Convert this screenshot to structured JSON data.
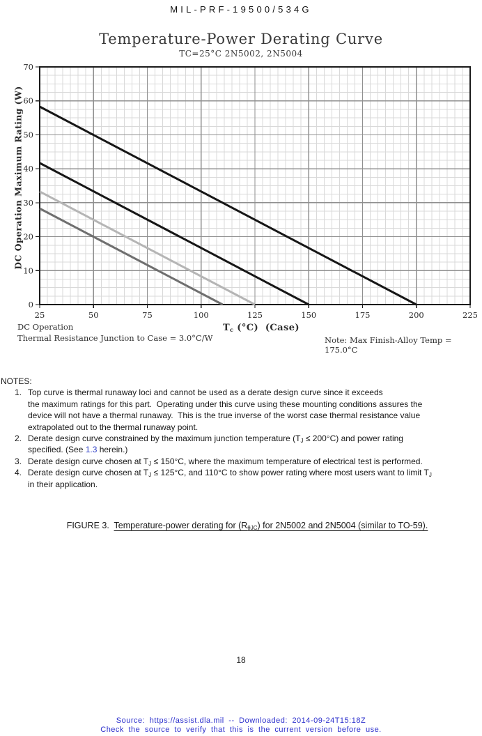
{
  "page": {
    "header": "MIL-PRF-19500/534G",
    "page_number": "18",
    "footer_line1": "Source: https://assist.dla.mil -- Downloaded: 2014-09-24T15:18Z",
    "footer_line2": "Check the source to verify that this is the current version before use.",
    "footer_color": "#2a2ecc"
  },
  "chart": {
    "xlabel_prefix": "T",
    "xlabel_sub": "c",
    "xlabel_suffix": " (°C)  (Case)",
    "annotation_dc_operation": "DC Operation",
    "annotation_thermal": "Thermal Resistance Junction to Case = 3.0°C/W",
    "annotation_note": "Note: Max Finish-Alloy Temp = 175.0°C"
  },
  "chart_data": {
    "type": "line",
    "title": "Temperature-Power Derating Curve",
    "subtitle": "TC=25°C 2N5002, 2N5004",
    "xlabel": "Tc (°C) (Case)",
    "ylabel": "DC Operation Maximum Rating (W)",
    "xlim": [
      25,
      225
    ],
    "ylim": [
      0,
      70
    ],
    "xticks": [
      25,
      50,
      75,
      100,
      125,
      150,
      175,
      200,
      225
    ],
    "yticks": [
      0,
      10,
      20,
      30,
      40,
      50,
      60,
      70
    ],
    "x_minor_per_major": 7,
    "y_minor_per_major": 4,
    "grid": {
      "major_color": "#8f8f8f",
      "minor_color": "#d9d9d9",
      "border_color": "#1a1a1a"
    },
    "legend": "none",
    "series": [
      {
        "name": "Thermal runaway loci (TJ = 200°C)",
        "color": "#161616",
        "width": 3,
        "points": [
          [
            25,
            58.3
          ],
          [
            200,
            0
          ]
        ]
      },
      {
        "name": "Derate design curve TJ ≤ 150°C",
        "color": "#161616",
        "width": 3,
        "points": [
          [
            25,
            41.7
          ],
          [
            150,
            0
          ]
        ]
      },
      {
        "name": "Derate design curve TJ ≤ 125°C",
        "color": "#b5b5b5",
        "width": 3,
        "points": [
          [
            25,
            33.3
          ],
          [
            125,
            0
          ]
        ]
      },
      {
        "name": "Derate design curve TJ ≤ 110°C",
        "color": "#6f6f6f",
        "width": 3,
        "points": [
          [
            25,
            28.3
          ],
          [
            110,
            0
          ]
        ]
      }
    ]
  },
  "notes": {
    "heading": "NOTES:",
    "item1": {
      "num": "1.",
      "line1": "Top curve is thermal runaway loci and cannot be used as a derate design curve since it exceeds",
      "line2": "the maximum ratings for this part.  Operating under this curve using these mounting conditions assures the",
      "line3": "device will not have a thermal runaway.  This is the true inverse of the worst case thermal resistance value",
      "line4": "extrapolated out to the thermal runaway point."
    },
    "item2": {
      "num": "2.",
      "l1a": "Derate design curve constrained by the maximum junction temperature (T",
      "l1sub": "J",
      "l1b": " ≤ 200°C) and power rating",
      "l2a": "specified. (See ",
      "l2link": "1.3",
      "l2b": " herein.)"
    },
    "item3": {
      "num": "3.",
      "a": "Derate design curve chosen at T",
      "sub": "J",
      "b": " ≤ 150°C, where the maximum temperature of electrical test is performed."
    },
    "item4": {
      "num": "4.",
      "l1a": "Derate design curve chosen at T",
      "l1sub1": "J",
      "l1b": " ≤ 125°C, and 110°C to show power rating where most users want to limit T",
      "l1sub2": "J",
      "l2": "in their application."
    }
  },
  "figure": {
    "label": "FIGURE 3.  ",
    "caption_a": "Temperature-power derating for (R",
    "caption_sub": "θJC",
    "caption_b": ") for 2N5002 and 2N5004 (similar to TO-59)."
  }
}
